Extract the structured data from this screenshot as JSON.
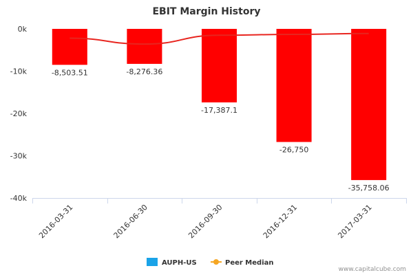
{
  "chart_data": {
    "type": "bar",
    "title": "EBIT Margin History",
    "categories": [
      "2016-03-31",
      "2016-06-30",
      "2016-09-30",
      "2016-12-31",
      "2017-03-31"
    ],
    "series": [
      {
        "name": "AUPH-US",
        "type": "bar",
        "values": [
          -8503.51,
          -8276.36,
          -17387.1,
          -26750,
          -35758.06
        ],
        "data_labels": [
          "-8,503.51",
          "-8,276.36",
          "-17,387.1",
          "-26,750",
          "-35,758.06"
        ],
        "color": "#ff0000",
        "legend_color": "#1aa3e8"
      },
      {
        "name": "Peer Median",
        "type": "line",
        "values": [
          -2200,
          -3600,
          -1500,
          -1300,
          -1100
        ],
        "color": "#e8251f",
        "legend_color": "#f5a623"
      }
    ],
    "ylim": [
      -40000,
      0
    ],
    "yticks": [
      0,
      -10000,
      -20000,
      -30000,
      -40000
    ],
    "ytick_labels": [
      "0k",
      "-10k",
      "-20k",
      "-30k",
      "-40k"
    ],
    "grid": false,
    "legend_position": "bottom-center"
  },
  "credit": "www.capitalcube.com"
}
